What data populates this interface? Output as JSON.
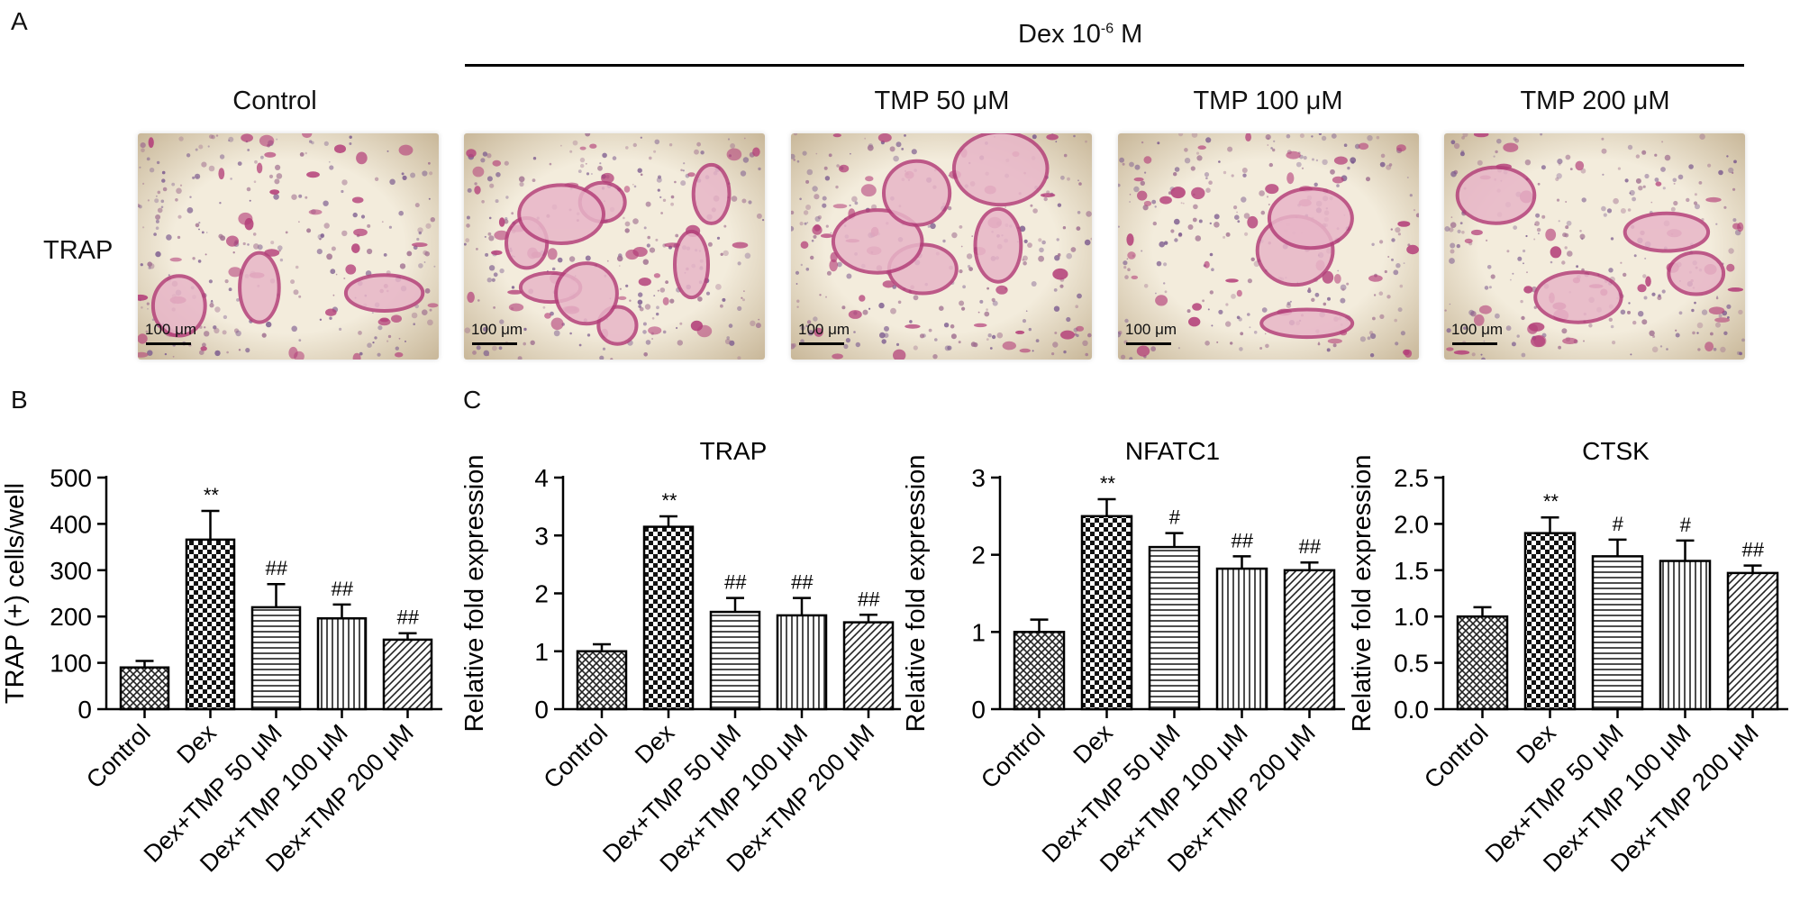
{
  "panelA": {
    "letter": "A",
    "dex_header": "Dex 10",
    "dex_header_sup": "-6",
    "dex_header_unit": " M",
    "row_label": "TRAP",
    "columns": [
      "Control",
      "",
      "TMP 50 μM",
      "TMP 100 μM",
      "TMP 200 μM"
    ],
    "scale_bar": "100 μm",
    "colors": {
      "stain": "#b4407a",
      "background": "#f3ecdc",
      "purple": "#7b5a8e"
    }
  },
  "panelB": {
    "letter": "B"
  },
  "panelC": {
    "letter": "C"
  },
  "chart_data": [
    {
      "type": "bar",
      "panel": "B",
      "title": "",
      "ylabel": "TRAP (+) cells/well",
      "categories": [
        "Control",
        "Dex",
        "Dex+TMP 50 μM",
        "Dex+TMP 100 μM",
        "Dex+TMP 200 μM"
      ],
      "values": [
        90,
        366,
        220,
        196,
        150
      ],
      "errors": [
        14,
        62,
        50,
        30,
        14
      ],
      "annotations": [
        "",
        "**",
        "##",
        "##",
        "##"
      ],
      "patterns": [
        "crosshatch",
        "checker",
        "horizontal",
        "vertical",
        "diagonal"
      ],
      "ylim": [
        0,
        500
      ],
      "yticks": [
        "0",
        "100",
        "200",
        "300",
        "400",
        "500"
      ]
    },
    {
      "type": "bar",
      "panel": "C",
      "title": "TRAP",
      "ylabel": "Relative fold expression",
      "categories": [
        "Control",
        "Dex",
        "Dex+TMP 50 μM",
        "Dex+TMP 100 μM",
        "Dex+TMP 200 μM"
      ],
      "values": [
        1.0,
        3.15,
        1.68,
        1.62,
        1.5
      ],
      "errors": [
        0.12,
        0.18,
        0.24,
        0.3,
        0.13
      ],
      "annotations": [
        "",
        "**",
        "##",
        "##",
        "##"
      ],
      "patterns": [
        "crosshatch",
        "checker",
        "horizontal",
        "vertical",
        "diagonal"
      ],
      "ylim": [
        0,
        4
      ],
      "yticks": [
        "0",
        "1",
        "2",
        "3",
        "4"
      ]
    },
    {
      "type": "bar",
      "panel": "C",
      "title": "NFATC1",
      "ylabel": "Relative fold expression",
      "categories": [
        "Control",
        "Dex",
        "Dex+TMP 50 μM",
        "Dex+TMP 100 μM",
        "Dex+TMP 200 μM"
      ],
      "values": [
        1.0,
        2.5,
        2.1,
        1.82,
        1.8
      ],
      "errors": [
        0.16,
        0.22,
        0.18,
        0.16,
        0.1
      ],
      "annotations": [
        "",
        "**",
        "#",
        "##",
        "##"
      ],
      "patterns": [
        "crosshatch",
        "checker",
        "horizontal",
        "vertical",
        "diagonal"
      ],
      "ylim": [
        0,
        3
      ],
      "yticks": [
        "0",
        "1",
        "2",
        "3"
      ]
    },
    {
      "type": "bar",
      "panel": "C",
      "title": "CTSK",
      "ylabel": "Relative fold expression",
      "categories": [
        "Control",
        "Dex",
        "Dex+TMP 50 μM",
        "Dex+TMP 100 μM",
        "Dex+TMP 200 μM"
      ],
      "values": [
        1.0,
        1.9,
        1.65,
        1.6,
        1.47
      ],
      "errors": [
        0.1,
        0.17,
        0.18,
        0.22,
        0.08
      ],
      "annotations": [
        "",
        "**",
        "#",
        "#",
        "##"
      ],
      "patterns": [
        "crosshatch",
        "checker",
        "horizontal",
        "vertical",
        "diagonal"
      ],
      "ylim": [
        0,
        2.5
      ],
      "yticks": [
        "0.0",
        "0.5",
        "1.0",
        "1.5",
        "2.0",
        "2.5"
      ]
    }
  ]
}
